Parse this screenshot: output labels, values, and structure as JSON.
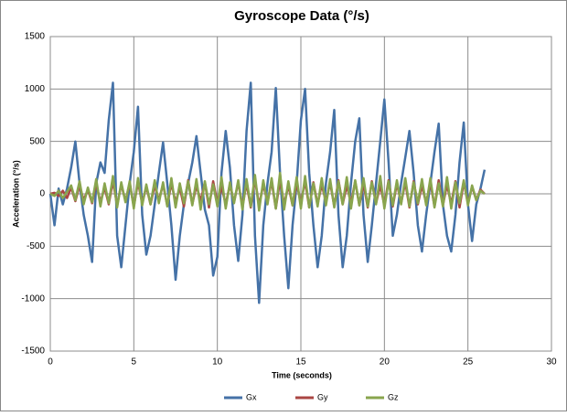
{
  "chart_data": {
    "type": "line",
    "title": "Gyroscope Data (°/s)",
    "x_label": "Time (seconds)",
    "y_label": "Acceleration (°/s)",
    "xlim": [
      0,
      30
    ],
    "xticks": [
      0,
      5,
      10,
      15,
      20,
      25,
      30
    ],
    "ylim": [
      -1500,
      1500
    ],
    "yticks": [
      -1500,
      -1000,
      -500,
      0,
      500,
      1000,
      1500
    ],
    "grid": true,
    "legend": "bottom",
    "x": [
      0,
      0.25,
      0.5,
      0.75,
      1,
      1.25,
      1.5,
      1.75,
      2,
      2.25,
      2.5,
      2.75,
      3,
      3.25,
      3.5,
      3.75,
      4,
      4.25,
      4.5,
      4.75,
      5,
      5.25,
      5.5,
      5.75,
      6,
      6.25,
      6.5,
      6.75,
      7,
      7.25,
      7.5,
      7.75,
      8,
      8.25,
      8.5,
      8.75,
      9,
      9.25,
      9.5,
      9.75,
      10,
      10.25,
      10.5,
      10.75,
      11,
      11.25,
      11.5,
      11.75,
      12,
      12.25,
      12.5,
      12.75,
      13,
      13.25,
      13.5,
      13.75,
      14,
      14.25,
      14.5,
      14.75,
      15,
      15.25,
      15.5,
      15.75,
      16,
      16.25,
      16.5,
      16.75,
      17,
      17.25,
      17.5,
      17.75,
      18,
      18.25,
      18.5,
      18.75,
      19,
      19.25,
      19.5,
      19.75,
      20,
      20.25,
      20.5,
      20.75,
      21,
      21.25,
      21.5,
      21.75,
      22,
      22.25,
      22.5,
      22.75,
      23,
      23.25,
      23.5,
      23.75,
      24,
      24.25,
      24.5,
      24.75,
      25,
      25.25,
      25.5,
      25.75,
      26
    ],
    "series": [
      {
        "name": "Gx",
        "color": "#4572a7",
        "values": [
          0,
          -300,
          50,
          -100,
          50,
          250,
          500,
          100,
          -200,
          -400,
          -650,
          100,
          300,
          200,
          700,
          1060,
          -400,
          -700,
          -300,
          100,
          400,
          830,
          -200,
          -580,
          -400,
          -100,
          200,
          490,
          100,
          -300,
          -820,
          -400,
          -100,
          100,
          300,
          550,
          200,
          -150,
          -300,
          -780,
          -600,
          200,
          600,
          250,
          -300,
          -640,
          -200,
          600,
          1060,
          -400,
          -1040,
          -300,
          100,
          400,
          1010,
          200,
          -400,
          -900,
          -300,
          100,
          700,
          1000,
          200,
          -300,
          -700,
          -400,
          100,
          400,
          800,
          -200,
          -700,
          -400,
          100,
          500,
          720,
          -200,
          -650,
          -300,
          100,
          500,
          900,
          300,
          -400,
          -200,
          100,
          350,
          600,
          200,
          -300,
          -550,
          -200,
          100,
          400,
          670,
          -100,
          -400,
          -550,
          -200,
          300,
          680,
          -100,
          -450,
          -100,
          50,
          230
        ]
      },
      {
        "name": "Gy",
        "color": "#aa4643",
        "values": [
          0,
          10,
          -20,
          30,
          -40,
          60,
          -70,
          80,
          -60,
          40,
          -90,
          100,
          -80,
          60,
          -100,
          120,
          -110,
          90,
          -70,
          100,
          -120,
          110,
          -90,
          70,
          -100,
          80,
          -60,
          90,
          -110,
          100,
          -80,
          60,
          -120,
          130,
          -100,
          80,
          -70,
          110,
          -130,
          120,
          -90,
          70,
          -100,
          90,
          -80,
          110,
          -120,
          100,
          -130,
          140,
          -110,
          90,
          -80,
          120,
          -140,
          130,
          -100,
          80,
          -110,
          100,
          -90,
          120,
          -130,
          110,
          -100,
          90,
          -80,
          110,
          -120,
          130,
          -100,
          80,
          -90,
          120,
          -110,
          100,
          -130,
          120,
          -90,
          80,
          -110,
          130,
          -120,
          100,
          -90,
          110,
          -130,
          120,
          -100,
          80,
          -90,
          110,
          -120,
          130,
          -110,
          90,
          -100,
          120,
          -130,
          110,
          -90,
          70,
          -60,
          40,
          0
        ]
      },
      {
        "name": "Gz",
        "color": "#89a54e",
        "values": [
          0,
          -20,
          30,
          -40,
          20,
          80,
          -60,
          120,
          -100,
          60,
          -80,
          140,
          -120,
          100,
          -90,
          170,
          -130,
          110,
          -80,
          120,
          -140,
          150,
          -110,
          90,
          -100,
          130,
          -90,
          110,
          -120,
          150,
          -130,
          100,
          -90,
          120,
          -110,
          140,
          -150,
          120,
          -100,
          90,
          -120,
          160,
          -140,
          110,
          -90,
          130,
          -150,
          140,
          -120,
          180,
          -160,
          130,
          -100,
          150,
          -140,
          200,
          -150,
          120,
          -110,
          160,
          -140,
          170,
          -130,
          100,
          -120,
          150,
          -110,
          140,
          -130,
          120,
          -100,
          160,
          -140,
          130,
          -110,
          150,
          -120,
          110,
          -100,
          170,
          -140,
          120,
          -110,
          130,
          -100,
          150,
          -120,
          110,
          -90,
          140,
          -110,
          150,
          -130,
          100,
          -120,
          160,
          -140,
          110,
          -90,
          130,
          -110,
          80,
          -60,
          30,
          0
        ]
      }
    ]
  }
}
